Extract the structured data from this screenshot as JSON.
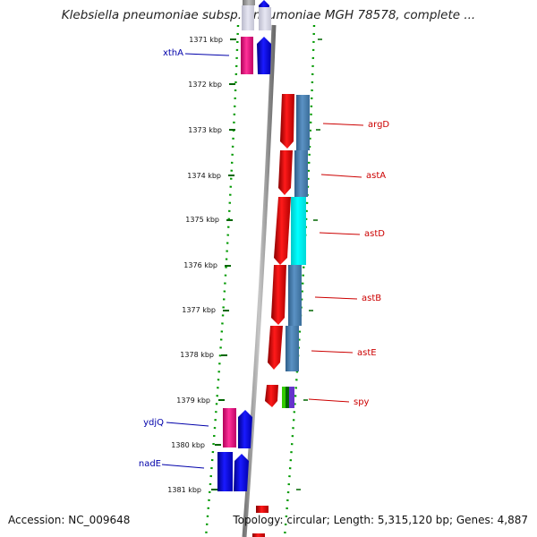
{
  "title": "Klebsiella pneumoniae subsp. pneumoniae MGH 78578, complete ...",
  "footer": {
    "accession": "Accession: NC_009648",
    "topology": "Topology: circular; Length: 5,315,120 bp; Genes: 4,887"
  },
  "ruler_labels": [
    "1371 kbp",
    "1372 kbp",
    "1373 kbp",
    "1374 kbp",
    "1375 kbp",
    "1376 kbp",
    "1377 kbp",
    "1378 kbp",
    "1379 kbp",
    "1380 kbp",
    "1381 kbp"
  ],
  "genes": [
    {
      "name": "xthA",
      "strand": "reverse"
    },
    {
      "name": "argD",
      "strand": "forward"
    },
    {
      "name": "astA",
      "strand": "forward"
    },
    {
      "name": "astD",
      "strand": "forward"
    },
    {
      "name": "astB",
      "strand": "forward"
    },
    {
      "name": "astE",
      "strand": "forward"
    },
    {
      "name": "spy",
      "strand": "forward"
    },
    {
      "name": "ydjQ",
      "strand": "reverse"
    },
    {
      "name": "nadE",
      "strand": "reverse"
    }
  ],
  "colors": {
    "forward_cds": "#ff0000",
    "reverse_cds": "#0000ff",
    "pink_feature": "#ff3399",
    "steel_feature": "#4682b4",
    "cyan_feature": "#00ffff",
    "reverse_label": "#0000aa",
    "forward_label": "#cc0000",
    "backbone": "#888888",
    "ruler_tick": "#006600"
  }
}
